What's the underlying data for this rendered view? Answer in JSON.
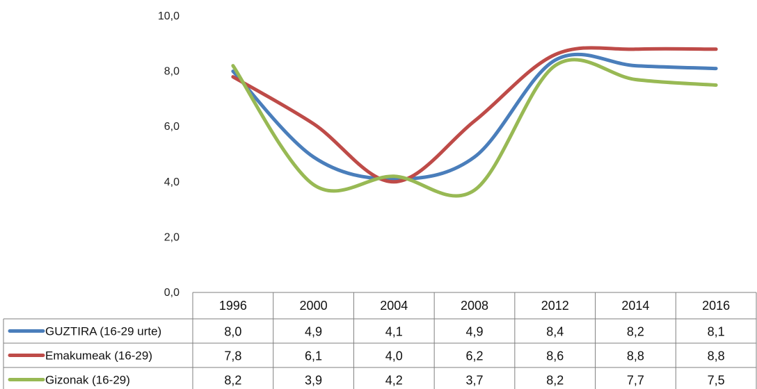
{
  "chart_data": {
    "type": "line",
    "title": "",
    "xlabel": "",
    "ylabel": "",
    "categories": [
      "1996",
      "2000",
      "2004",
      "2008",
      "2012",
      "2014",
      "2016"
    ],
    "ylim": [
      0,
      10
    ],
    "yticks": [
      "0,0",
      "2,0",
      "4,0",
      "6,0",
      "8,0",
      "10,0"
    ],
    "ytick_values": [
      0,
      2,
      4,
      6,
      8,
      10
    ],
    "grid": false,
    "legend": "data-table-below",
    "series": [
      {
        "name": "GUZTIRA (16-29 urte)",
        "color": "#4a7ebb",
        "values": [
          8.0,
          4.9,
          4.1,
          4.9,
          8.4,
          8.2,
          8.1
        ],
        "value_labels": [
          "8,0",
          "4,9",
          "4,1",
          "4,9",
          "8,4",
          "8,2",
          "8,1"
        ]
      },
      {
        "name": "Emakumeak (16-29)",
        "color": "#be4b48",
        "values": [
          7.8,
          6.1,
          4.0,
          6.2,
          8.6,
          8.8,
          8.8
        ],
        "value_labels": [
          "7,8",
          "6,1",
          "4,0",
          "6,2",
          "8,6",
          "8,8",
          "8,8"
        ]
      },
      {
        "name": "Gizonak (16-29)",
        "color": "#98b954",
        "values": [
          8.2,
          3.9,
          4.2,
          3.7,
          8.2,
          7.7,
          7.5
        ],
        "value_labels": [
          "8,2",
          "3,9",
          "4,2",
          "3,7",
          "8,2",
          "7,7",
          "7,5"
        ]
      }
    ]
  }
}
